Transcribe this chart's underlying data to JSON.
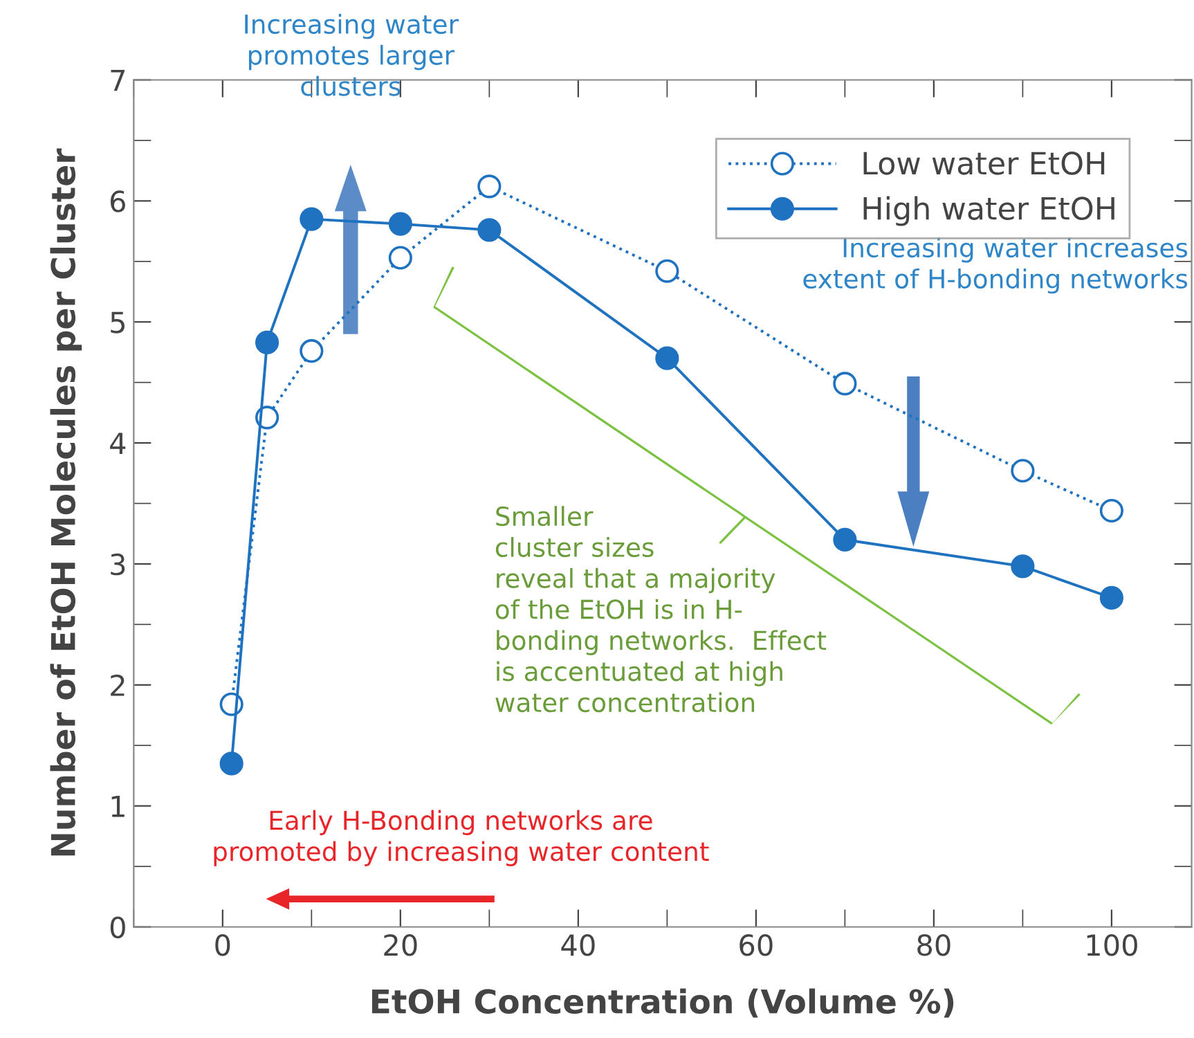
{
  "chart_data": {
    "type": "line",
    "xlabel": "EtOH Concentration (Volume %)",
    "ylabel": "Number of EtOH Molecules per Cluster",
    "xlim": [
      -10,
      109
    ],
    "ylim": [
      0,
      7
    ],
    "xticks": [
      0,
      20,
      40,
      60,
      80,
      100
    ],
    "yticks": [
      0,
      1,
      2,
      3,
      4,
      5,
      6,
      7
    ],
    "legend": "top right",
    "grid": false,
    "marker": "circle",
    "series": [
      {
        "name": "Low water EtOH",
        "color": "#1f72c0",
        "line_style": "dotted",
        "x": [
          1,
          5,
          10,
          20,
          30,
          50,
          70,
          90,
          100
        ],
        "values": [
          1.84,
          4.21,
          4.76,
          5.53,
          6.12,
          5.42,
          4.49,
          3.77,
          3.44
        ]
      },
      {
        "name": "High water EtOH",
        "color": "#1f72c0",
        "line_style": "solid",
        "x": [
          1,
          5,
          10,
          20,
          30,
          50,
          70,
          90,
          100
        ],
        "values": [
          1.35,
          4.83,
          5.85,
          5.81,
          5.76,
          4.7,
          3.2,
          2.98,
          2.72
        ]
      }
    ],
    "annotations": [
      "Increasing water\npromotes larger\nclusters",
      "Increasing water increases\nextent of H-bonding networks",
      "Smaller\ncluster sizes\nreveal that a majority\nof the EtOH is in H-\nbonding networks.  Effect\nis accentuated at high\nwater concentration",
      "Early H-Bonding networks are\npromoted by increasing water content"
    ]
  }
}
